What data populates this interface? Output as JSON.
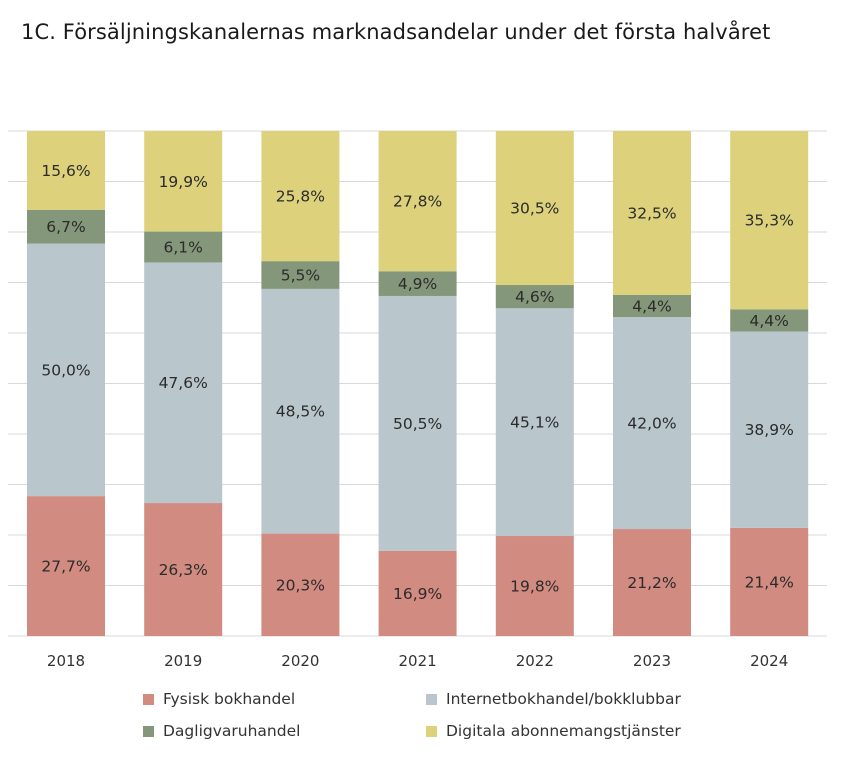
{
  "title": "1C. Försäljningskanalernas marknadsandelar under det första halvåret",
  "chart_data": {
    "type": "bar",
    "stacked": true,
    "title": "1C. Försäljningskanalernas marknadsandelar under det första halvåret",
    "xlabel": "",
    "ylabel": "",
    "ylim": [
      0,
      100
    ],
    "grid": true,
    "legend_position": "bottom",
    "categories": [
      "2018",
      "2019",
      "2020",
      "2021",
      "2022",
      "2023",
      "2024"
    ],
    "series": [
      {
        "name": "Fysisk bokhandel",
        "color": "#d28b80",
        "values": [
          27.7,
          26.3,
          20.3,
          16.9,
          19.8,
          21.2,
          21.4
        ],
        "labels": [
          "27,7%",
          "26,3%",
          "20,3%",
          "16,9%",
          "19,8%",
          "21,2%",
          "21,4%"
        ]
      },
      {
        "name": "Internetbokhandel/bokklubbar",
        "color": "#b9c7cc",
        "values": [
          50.0,
          47.6,
          48.5,
          50.5,
          45.1,
          42.0,
          38.9
        ],
        "labels": [
          "50,0%",
          "47,6%",
          "48,5%",
          "50,5%",
          "45,1%",
          "42,0%",
          "38,9%"
        ]
      },
      {
        "name": "Dagligvaruhandel",
        "color": "#85977a",
        "values": [
          6.7,
          6.1,
          5.5,
          4.9,
          4.6,
          4.4,
          4.4
        ],
        "labels": [
          "6,7%",
          "6,1%",
          "5,5%",
          "4,9%",
          "4,6%",
          "4,4%",
          "4,4%"
        ]
      },
      {
        "name": "Digitala abonnemangstjänster",
        "color": "#ddd27b",
        "values": [
          15.6,
          19.9,
          25.8,
          27.8,
          30.5,
          32.5,
          35.3
        ],
        "labels": [
          "15,6%",
          "19,9%",
          "25,8%",
          "27,8%",
          "30,5%",
          "32,5%",
          "35,3%"
        ]
      }
    ]
  }
}
